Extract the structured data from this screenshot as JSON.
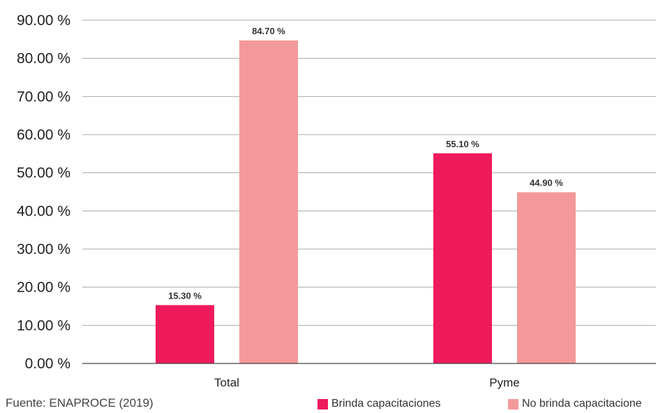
{
  "chart_data": {
    "type": "bar",
    "categories": [
      "Total",
      "Pyme"
    ],
    "series": [
      {
        "name": "Brinda capacitaciones",
        "values": [
          15.3,
          55.1
        ],
        "labels": [
          "15.30 %",
          "55.10 %"
        ]
      },
      {
        "name": "No brinda capacitacione",
        "values": [
          84.7,
          44.9
        ],
        "labels": [
          "84.70 %",
          "44.90 %"
        ]
      }
    ],
    "ylim": [
      0,
      90
    ],
    "yticks": [
      "0.00 %",
      "10.00 %",
      "20.00 %",
      "30.00 %",
      "40.00 %",
      "50.00 %",
      "60.00 %",
      "70.00 %",
      "80.00 %",
      "90.00 %"
    ],
    "grid": true,
    "legend_position": "bottom-right",
    "colors": [
      "#ee1a5c",
      "#f4999b"
    ]
  },
  "source": "Fuente: ENAPROCE (2019)"
}
